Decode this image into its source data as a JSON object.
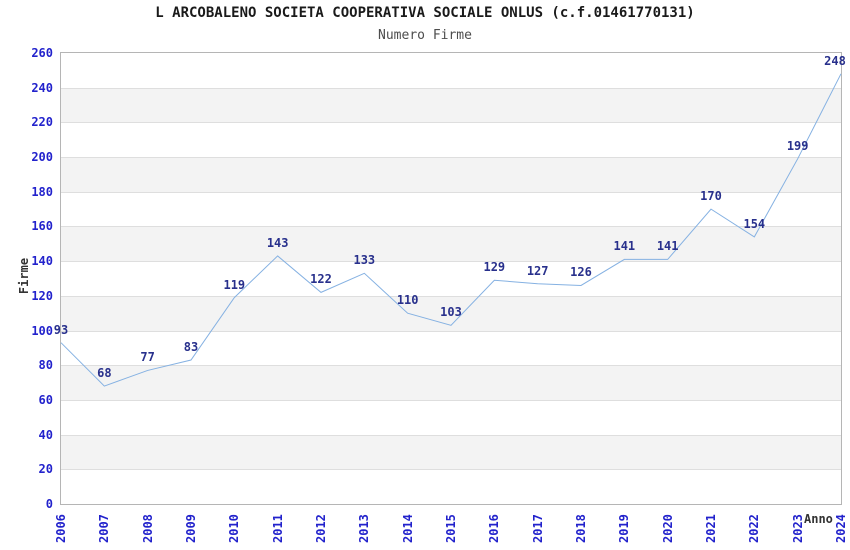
{
  "chart_data": {
    "type": "line",
    "title": "L ARCOBALENO SOCIETA COOPERATIVA SOCIALE ONLUS (c.f.01461770131)",
    "subtitle": "Numero Firme",
    "xlabel": "Anno",
    "ylabel": "Firme",
    "x": [
      "2006",
      "2007",
      "2008",
      "2009",
      "2010",
      "2011",
      "2012",
      "2013",
      "2014",
      "2015",
      "2016",
      "2017",
      "2018",
      "2019",
      "2020",
      "2021",
      "2022",
      "2023",
      "2024"
    ],
    "series": [
      {
        "name": "Numero Firme",
        "values": [
          93,
          68,
          77,
          83,
          119,
          143,
          122,
          133,
          110,
          103,
          129,
          127,
          126,
          141,
          141,
          170,
          154,
          199,
          248
        ]
      }
    ],
    "ylim": [
      0,
      260
    ],
    "ytick_step": 20,
    "grid": "horizontal-bands-alternating",
    "legend": "none",
    "point_labels_visible": true,
    "colors": {
      "line": "#85b1e2",
      "tick_labels": "#2222cc",
      "point_labels": "#28308c",
      "band_fill": "#f3f3f3",
      "grid_line": "#dedede",
      "plot_border": "#b5b5b5",
      "title": "#1a1a1a",
      "subtitle": "#4d4d4d",
      "axis_titles": "#333333"
    }
  }
}
